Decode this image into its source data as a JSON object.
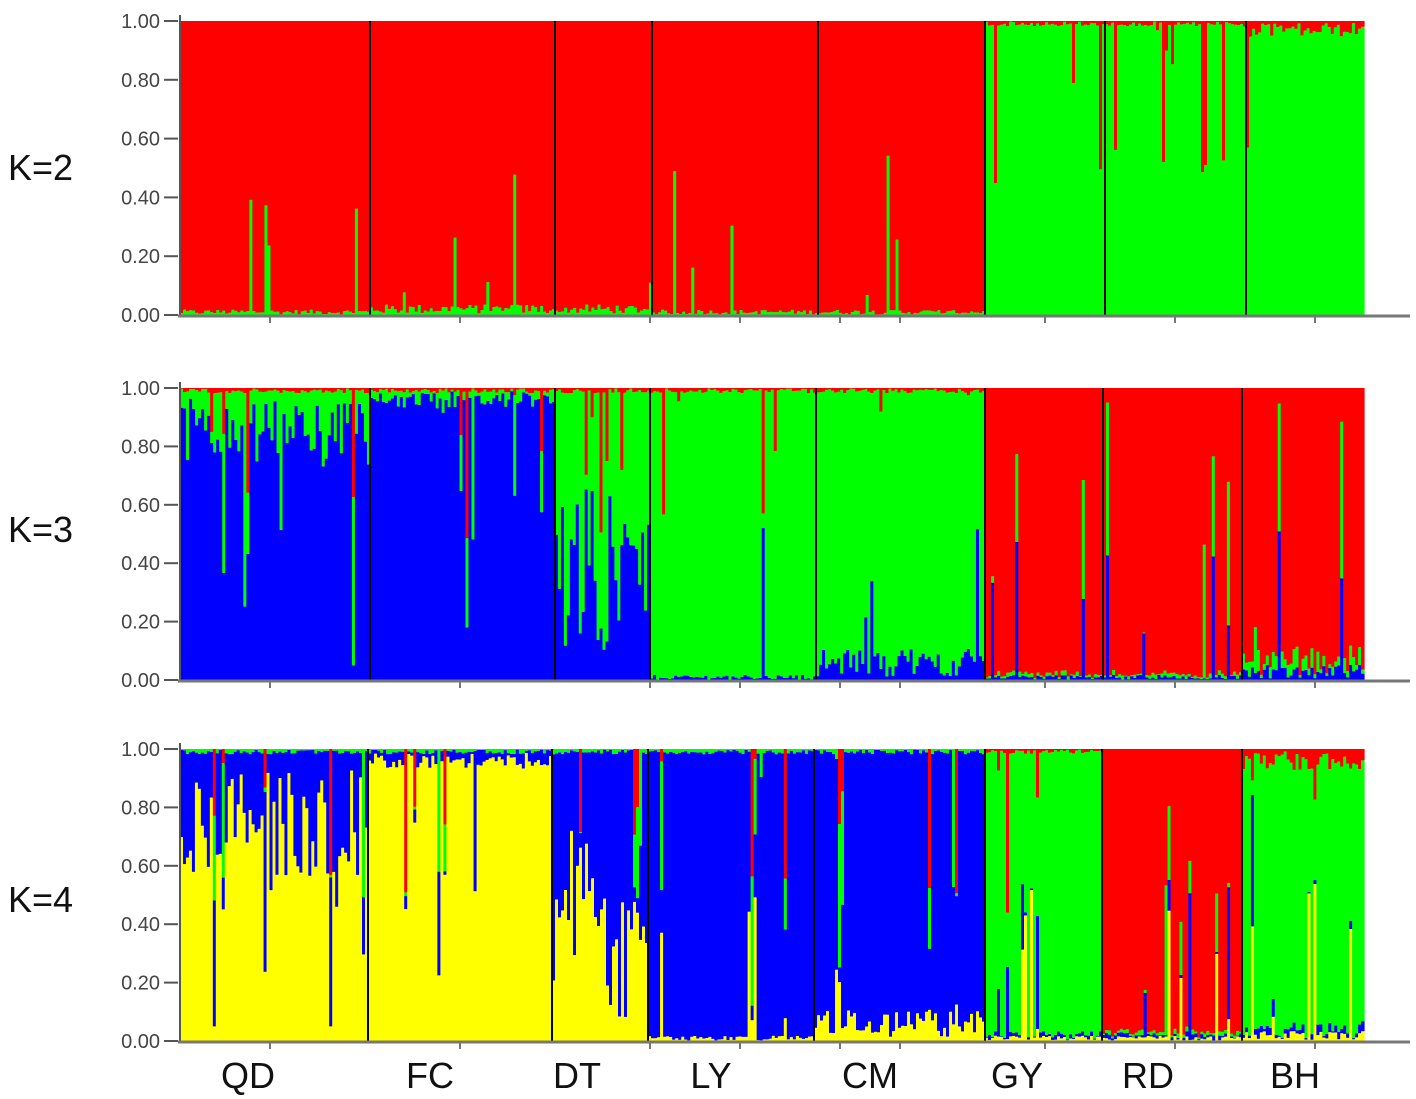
{
  "chart_data": {
    "type": "bar",
    "stacked": true,
    "description_of_marks": "STRUCTURE admixture plots: each population is a block of individuals with stacked membership coefficients summing to 1.00",
    "ylim": [
      0,
      1
    ],
    "yticks": [
      "0.00",
      "0.20",
      "0.40",
      "0.60",
      "0.80",
      "1.00"
    ],
    "populations": [
      "QD",
      "FC",
      "DT",
      "LY",
      "CM",
      "GY",
      "RD",
      "BH"
    ],
    "colors": {
      "red": "#ff0000",
      "green": "#00ff00",
      "blue": "#0000ff",
      "yellow": "#ffff00"
    },
    "panels": [
      {
        "label": "K=2",
        "cluster_order": [
          "green",
          "red"
        ],
        "approx_mean_membership": {
          "QD": {
            "red": 0.99,
            "green": 0.01
          },
          "FC": {
            "red": 0.98,
            "green": 0.02
          },
          "DT": {
            "red": 0.98,
            "green": 0.02
          },
          "LY": {
            "red": 0.99,
            "green": 0.01
          },
          "CM": {
            "red": 0.99,
            "green": 0.01
          },
          "GY": {
            "red": 0.01,
            "green": 0.99
          },
          "RD": {
            "red": 0.01,
            "green": 0.99
          },
          "BH": {
            "red": 0.03,
            "green": 0.97
          }
        }
      },
      {
        "label": "K=3",
        "cluster_order": [
          "blue",
          "green",
          "red"
        ],
        "approx_mean_membership": {
          "QD": {
            "blue": 0.85,
            "green": 0.14,
            "red": 0.01
          },
          "FC": {
            "blue": 0.96,
            "green": 0.03,
            "red": 0.01
          },
          "DT": {
            "blue": 0.35,
            "green": 0.64,
            "red": 0.01
          },
          "LY": {
            "blue": 0.01,
            "green": 0.98,
            "red": 0.01
          },
          "CM": {
            "blue": 0.06,
            "green": 0.93,
            "red": 0.01
          },
          "GY": {
            "blue": 0.01,
            "green": 0.01,
            "red": 0.98
          },
          "RD": {
            "blue": 0.01,
            "green": 0.01,
            "red": 0.98
          },
          "BH": {
            "blue": 0.03,
            "green": 0.04,
            "red": 0.93
          }
        }
      },
      {
        "label": "K=4",
        "cluster_order": [
          "yellow",
          "blue",
          "green",
          "red"
        ],
        "approx_mean_membership": {
          "QD": {
            "yellow": 0.75,
            "blue": 0.24,
            "green": 0.01,
            "red": 0.0
          },
          "FC": {
            "yellow": 0.96,
            "blue": 0.03,
            "green": 0.01,
            "red": 0.0
          },
          "DT": {
            "yellow": 0.4,
            "blue": 0.59,
            "green": 0.01,
            "red": 0.0
          },
          "LY": {
            "yellow": 0.01,
            "blue": 0.98,
            "green": 0.01,
            "red": 0.0
          },
          "CM": {
            "yellow": 0.06,
            "blue": 0.93,
            "green": 0.01,
            "red": 0.0
          },
          "GY": {
            "yellow": 0.01,
            "blue": 0.01,
            "green": 0.97,
            "red": 0.01
          },
          "RD": {
            "yellow": 0.01,
            "blue": 0.01,
            "green": 0.01,
            "red": 0.97
          },
          "BH": {
            "yellow": 0.02,
            "blue": 0.02,
            "green": 0.92,
            "red": 0.04
          }
        }
      }
    ]
  }
}
